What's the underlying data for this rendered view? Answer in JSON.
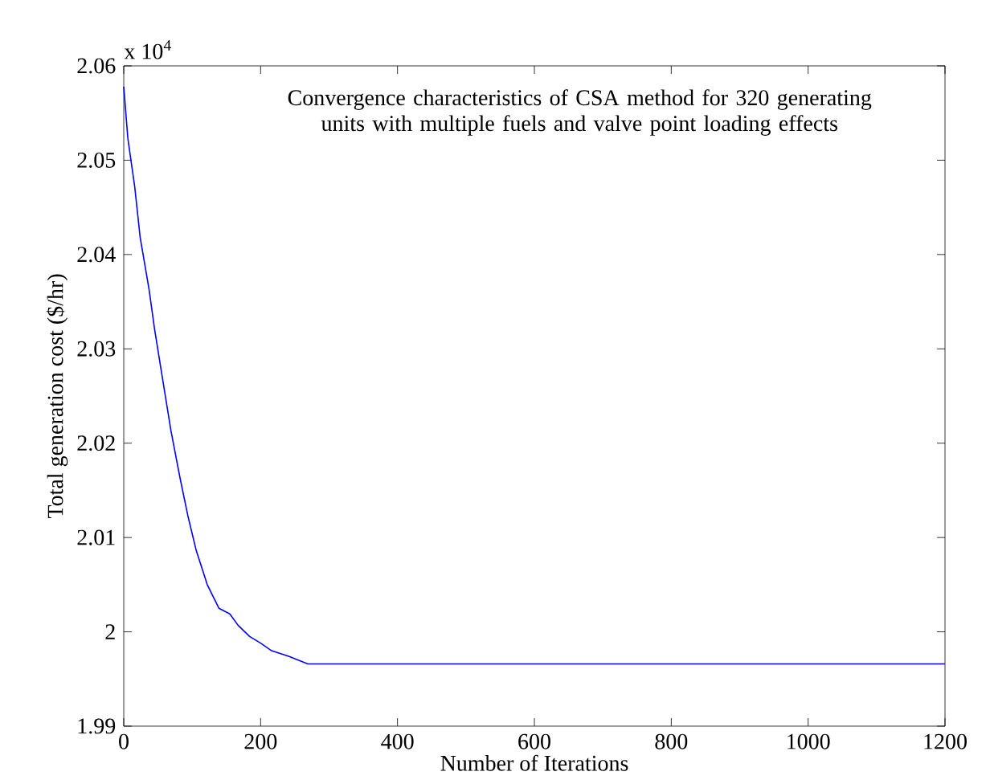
{
  "chart_data": {
    "type": "line",
    "xlabel": "Number of Iterations",
    "ylabel": "Total generation cost ($/hr)",
    "annotations": [
      "x 10$^{4}$",
      "Convergence characteristics of CSA method for 320 generating units with multiple fuels and valve point loading effects"
    ],
    "series": [
      {
        "color": "#0000ff",
        "x": [
          0,
          6,
          16,
          24,
          37,
          45,
          57,
          69,
          82,
          94,
          106,
          122,
          139,
          155,
          167,
          184,
          200,
          216,
          241,
          269,
          400,
          600,
          800,
          1000,
          1200
        ],
        "values": [
          2.0578,
          2.0523,
          2.0472,
          2.0418,
          2.0363,
          2.0321,
          2.0267,
          2.0213,
          2.0164,
          2.0122,
          2.0086,
          2.005,
          2.0025,
          2.0019,
          2.0007,
          1.9995,
          1.9988,
          1.998,
          1.9974,
          1.9966,
          1.9966,
          1.9966,
          1.9966,
          1.9966,
          1.9966
        ]
      }
    ],
    "xlim": [
      0,
      1200
    ],
    "ylim": [
      1.99,
      2.06
    ],
    "xticks": [
      0,
      200,
      400,
      600,
      800,
      1000,
      1200
    ],
    "yticks": [
      1.99,
      2,
      2.01,
      2.02,
      2.03,
      2.04,
      2.05,
      2.06
    ]
  }
}
